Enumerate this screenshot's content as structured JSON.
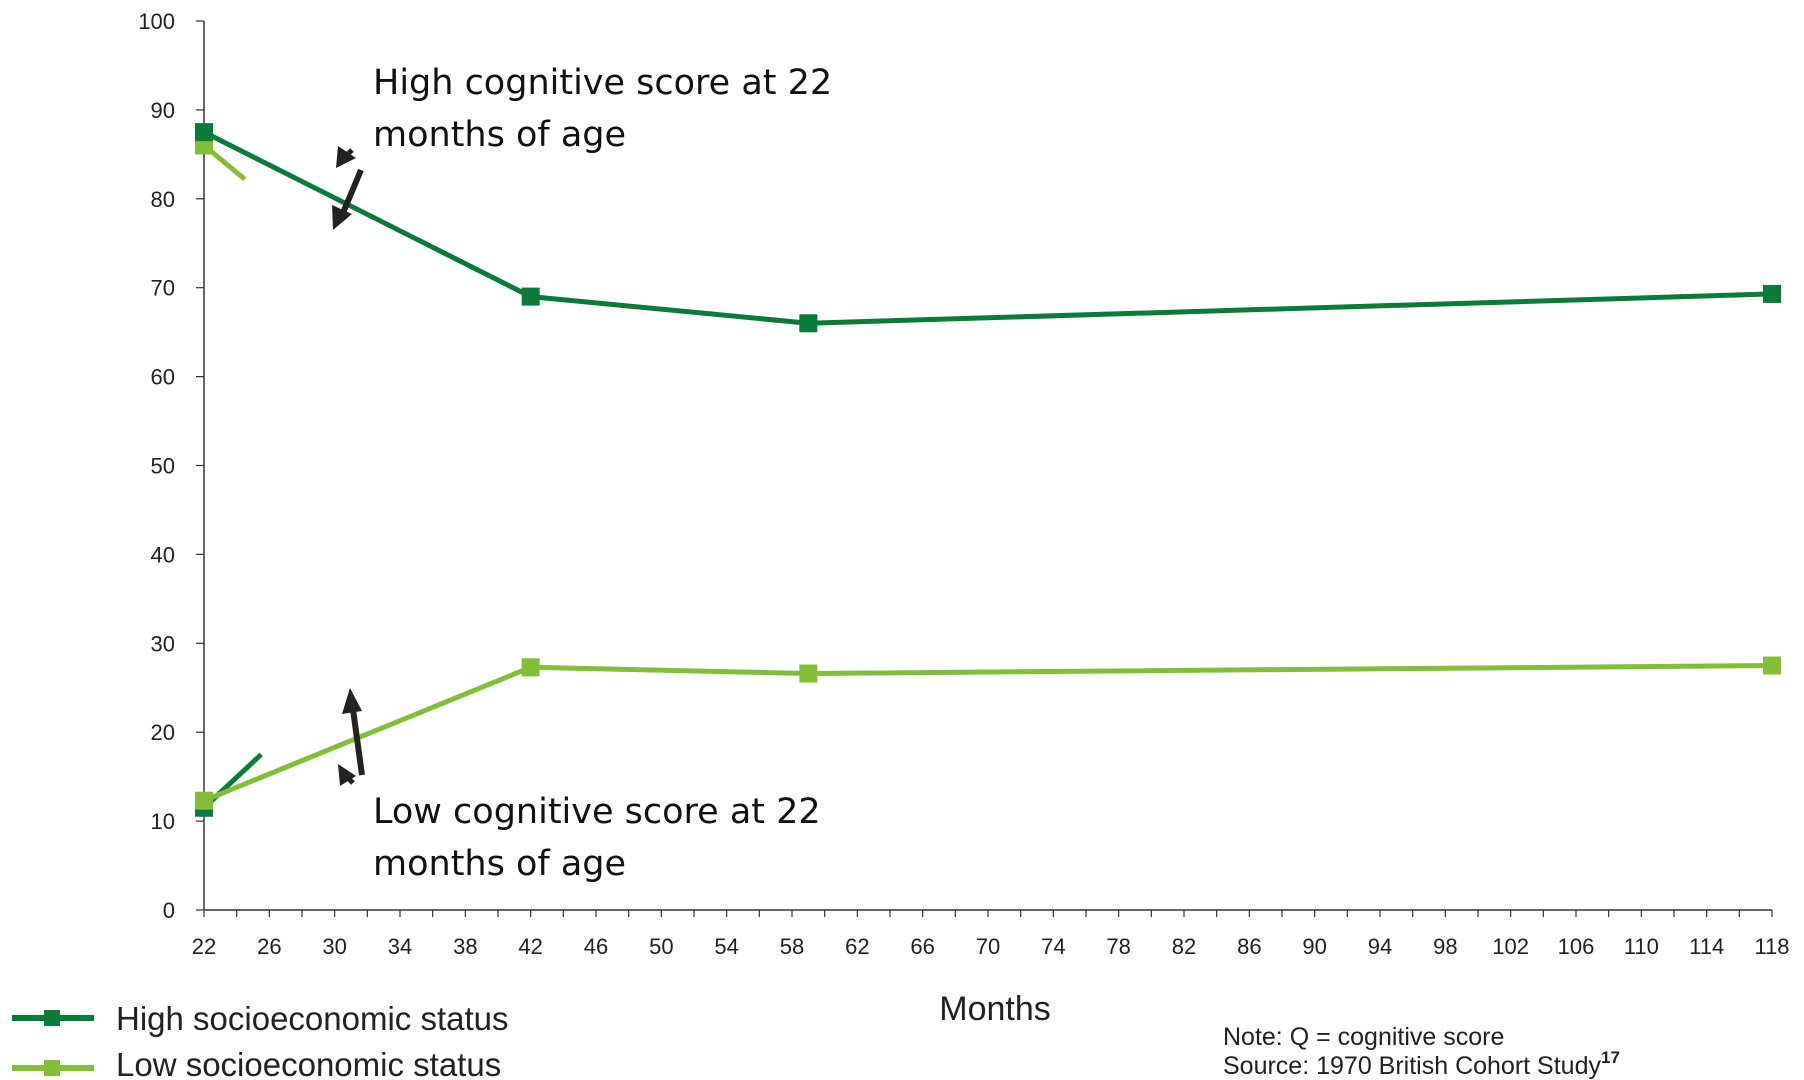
{
  "chart_data": {
    "type": "line",
    "x_ticks": [
      22,
      26,
      30,
      34,
      38,
      42,
      46,
      50,
      54,
      58,
      62,
      66,
      70,
      74,
      78,
      82,
      86,
      90,
      94,
      98,
      102,
      106,
      110,
      114,
      118
    ],
    "y_ticks": [
      0,
      10,
      20,
      30,
      40,
      50,
      60,
      70,
      80,
      90,
      100
    ],
    "xlim": [
      22,
      118
    ],
    "ylim": [
      0,
      100
    ],
    "xlabel": "Months",
    "ylabel": "",
    "title": "",
    "grid": false,
    "legend_position": "bottom-left",
    "series": [
      {
        "name": "High socioeconomic status",
        "color": "#0b7a3a",
        "group": "High cognitive score at 22 months of age",
        "x": [
          22,
          42,
          59,
          118
        ],
        "y": [
          87.5,
          69,
          66,
          69.3
        ]
      },
      {
        "name": "Low socioeconomic status",
        "color": "#84bd3a",
        "group": "High cognitive score at 22 months of age",
        "x": [
          22,
          24.5
        ],
        "y": [
          86,
          82.2
        ]
      },
      {
        "name": "High socioeconomic status",
        "color": "#0b7a3a",
        "group": "Low cognitive score at 22 months of age",
        "x": [
          22,
          25.5
        ],
        "y": [
          11.5,
          17.5
        ]
      },
      {
        "name": "Low socioeconomic status",
        "color": "#84bd3a",
        "group": "Low cognitive score at 22 months of age",
        "x": [
          22,
          42,
          59,
          118
        ],
        "y": [
          12.3,
          27.3,
          26.6,
          27.5
        ]
      }
    ],
    "annotations": [
      {
        "text_lines": [
          "High cognitive score at 22",
          "months of age"
        ]
      },
      {
        "text_lines": [
          "Low cognitive score at 22",
          "months of age"
        ]
      }
    ],
    "legend": [
      {
        "label": "High socioeconomic status",
        "color": "#0b7a3a"
      },
      {
        "label": "Low socioeconomic status",
        "color": "#84bd3a"
      }
    ],
    "note": {
      "line1": "Note: Q = cognitive score",
      "line2": "Source: 1970 British Cohort Study",
      "superscript": "17"
    }
  }
}
